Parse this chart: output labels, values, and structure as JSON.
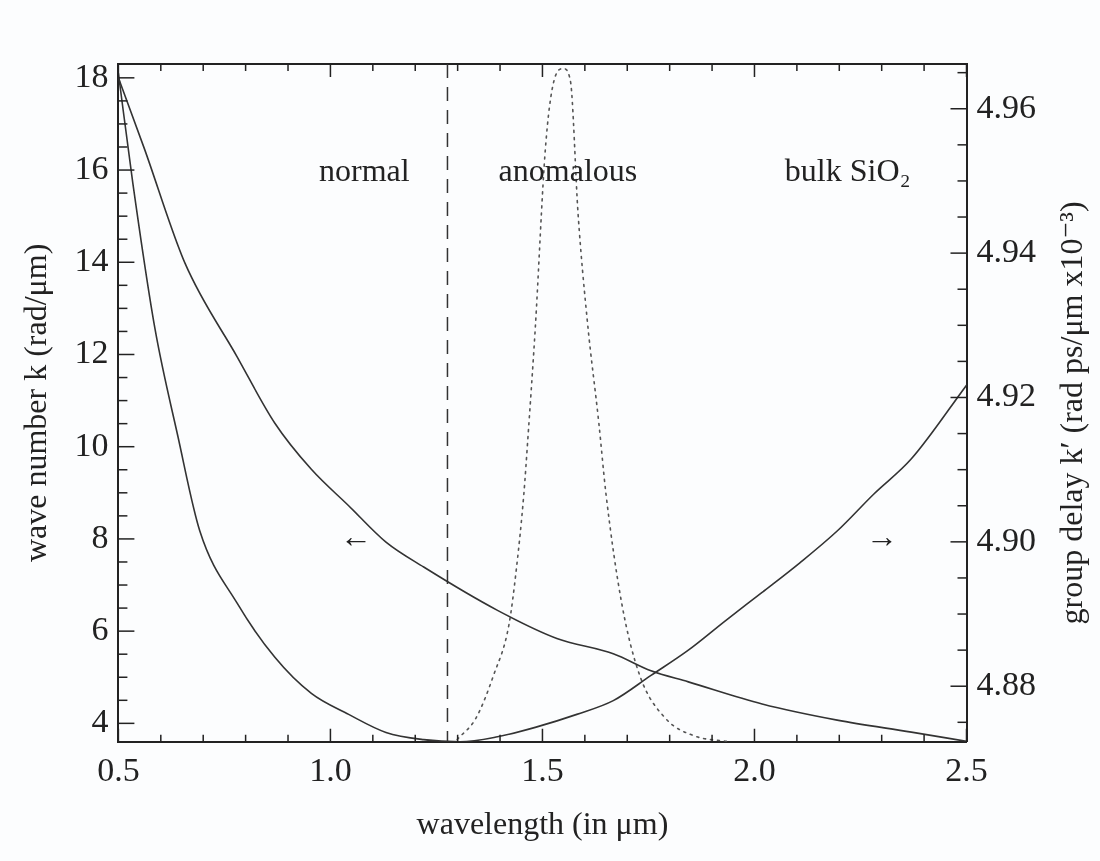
{
  "chart_data": {
    "type": "line",
    "xlabel": "wavelength (in μm)",
    "ylabel": "wave number k (rad/μm)",
    "y2label": "group delay k′ (rad ps/μm x10⁻³)",
    "xlim": [
      0.5,
      2.5
    ],
    "xticks": [
      {
        "value": 0.5,
        "label": "0.5"
      },
      {
        "value": 0.6,
        "label": null
      },
      {
        "value": 0.7,
        "label": null
      },
      {
        "value": 0.8,
        "label": null
      },
      {
        "value": 0.9,
        "label": null
      },
      {
        "value": 1,
        "label": "1.0"
      },
      {
        "value": 1.1,
        "label": null
      },
      {
        "value": 1.2,
        "label": null
      },
      {
        "value": 1.3,
        "label": null
      },
      {
        "value": 1.4,
        "label": null
      },
      {
        "value": 1.5,
        "label": "1.5"
      },
      {
        "value": 1.6,
        "label": null
      },
      {
        "value": 1.7,
        "label": null
      },
      {
        "value": 1.8,
        "label": null
      },
      {
        "value": 1.9,
        "label": null
      },
      {
        "value": 2,
        "label": "2.0"
      },
      {
        "value": 2.1,
        "label": null
      },
      {
        "value": 2.2,
        "label": null
      },
      {
        "value": 2.3,
        "label": null
      },
      {
        "value": 2.4,
        "label": null
      },
      {
        "value": 2.5,
        "label": "2.5"
      }
    ],
    "ylim": [
      3.6,
      18.3
    ],
    "yticks": [
      4,
      {
        "value": 4.5,
        "label": null
      },
      {
        "value": 5,
        "label": null
      },
      {
        "value": 5.5,
        "label": null
      },
      6,
      {
        "value": 6.5,
        "label": null
      },
      {
        "value": 7,
        "label": null
      },
      {
        "value": 7.5,
        "label": null
      },
      8,
      {
        "value": 8.5,
        "label": null
      },
      {
        "value": 9,
        "label": null
      },
      {
        "value": 9.5,
        "label": null
      },
      10,
      {
        "value": 10.5,
        "label": null
      },
      {
        "value": 11,
        "label": null
      },
      {
        "value": 11.5,
        "label": null
      },
      12,
      {
        "value": 12.5,
        "label": null
      },
      {
        "value": 13,
        "label": null
      },
      {
        "value": 13.5,
        "label": null
      },
      14,
      {
        "value": 14.5,
        "label": null
      },
      {
        "value": 15,
        "label": null
      },
      {
        "value": 15.5,
        "label": null
      },
      16,
      {
        "value": 16.5,
        "label": null
      },
      {
        "value": 17,
        "label": null
      },
      {
        "value": 17.5,
        "label": null
      },
      18
    ],
    "y2lim": [
      4.8723,
      4.9662
    ],
    "y2ticks": [
      {
        "value": 4.875,
        "label": null
      },
      4.88,
      {
        "value": 4.885,
        "label": null
      },
      {
        "value": 4.9,
        "label": "4.90"
      },
      {
        "value": 4.895,
        "label": null
      },
      {
        "value": 4.89,
        "label": null
      },
      {
        "value": 4.905,
        "label": null
      },
      {
        "value": 4.91,
        "label": null
      },
      {
        "value": 4.915,
        "label": null
      },
      4.92,
      {
        "value": 4.925,
        "label": null
      },
      {
        "value": 4.93,
        "label": null
      },
      {
        "value": 4.935,
        "label": null
      },
      4.94,
      {
        "value": 4.945,
        "label": null
      },
      {
        "value": 4.95,
        "label": null
      },
      {
        "value": 4.955,
        "label": null
      },
      4.96,
      {
        "value": 4.965,
        "label": null
      }
    ],
    "series": [
      {
        "color": "#333333",
        "line_style": "solid",
        "x": [
          0.5,
          0.561,
          0.657,
          0.78,
          0.869,
          0.955,
          1.043,
          1.131,
          1.22,
          1.394,
          1.534,
          1.667,
          1.756,
          1.844,
          2.018,
          2.195,
          2.37,
          2.5
        ],
        "values": [
          18.0,
          16.47,
          13.98,
          11.95,
          10.51,
          9.51,
          8.72,
          7.93,
          7.39,
          6.45,
          5.84,
          5.51,
          5.14,
          4.9,
          4.42,
          4.07,
          3.81,
          3.61
        ]
      },
      {
        "color": "#333333",
        "line_style": "solid",
        "axis": "y2",
        "x": [
          0.5,
          0.534,
          0.586,
          0.64,
          0.692,
          0.78,
          0.869,
          0.955,
          1.043,
          1.131,
          1.22,
          1.306,
          1.394,
          1.483,
          1.581,
          1.667,
          1.756,
          1.844,
          1.932,
          2.018,
          2.107,
          2.195,
          2.281,
          2.37,
          2.5
        ],
        "values": [
          4.9649,
          4.9497,
          4.9296,
          4.9147,
          4.9015,
          4.8915,
          4.884,
          4.879,
          4.8761,
          4.8736,
          4.8726,
          4.8723,
          4.873,
          4.8743,
          4.8761,
          4.878,
          4.8815,
          4.885,
          4.8891,
          4.893,
          4.8971,
          4.9015,
          4.9066,
          4.9115,
          4.9217
        ]
      },
      {
        "color": "#555555",
        "line_style": "dotted",
        "x": [
          1.299,
          1.343,
          1.385,
          1.421,
          1.439,
          1.456,
          1.466,
          1.483,
          1.507,
          1.527,
          1.549,
          1.566,
          1.584,
          1.606,
          1.633,
          1.65,
          1.687,
          1.729,
          1.79,
          1.861,
          1.934
        ],
        "values": [
          3.65,
          4.11,
          5.05,
          6.14,
          7.39,
          8.96,
          10.23,
          12.56,
          16.47,
          17.93,
          18.2,
          17.93,
          15.05,
          12.71,
          10.51,
          8.96,
          6.6,
          5.05,
          4.11,
          3.72,
          3.61
        ]
      }
    ],
    "ref_lines": [
      {
        "axis": "x",
        "value": 1.276,
        "line_style": "dashed",
        "color": "#333333"
      }
    ],
    "annotations": [
      "normal",
      "anomalous",
      "bulk SiO₂",
      "←",
      "→"
    ],
    "legend": false,
    "marker": "none",
    "grid": false
  }
}
